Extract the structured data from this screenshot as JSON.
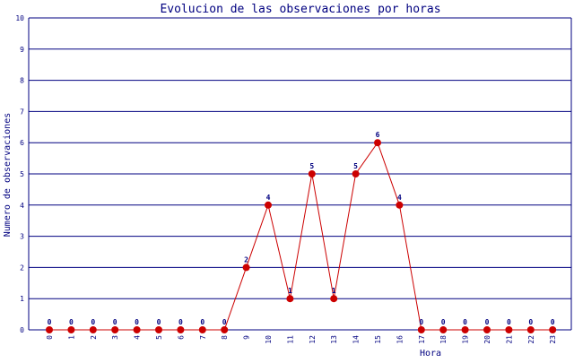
{
  "chart_data": {
    "type": "line",
    "title": "Evolucion de las observaciones por horas",
    "xlabel": "Hora",
    "ylabel": "Numero de observaciones",
    "categories": [
      "0",
      "1",
      "2",
      "3",
      "4",
      "5",
      "6",
      "7",
      "8",
      "9",
      "10",
      "11",
      "12",
      "13",
      "14",
      "15",
      "16",
      "17",
      "18",
      "19",
      "20",
      "21",
      "22",
      "23"
    ],
    "series": [
      {
        "values": [
          0,
          0,
          0,
          0,
          0,
          0,
          0,
          0,
          0,
          2,
          4,
          1,
          5,
          1,
          5,
          6,
          4,
          0,
          0,
          0,
          0,
          0,
          0,
          0
        ]
      }
    ],
    "ylim": [
      0,
      10
    ],
    "yticks": [
      0,
      1,
      2,
      3,
      4,
      5,
      6,
      7,
      8,
      9,
      10
    ],
    "grid": true,
    "legend": "none",
    "data_labels": true,
    "colors": {
      "grid": "#000080",
      "text": "#000080",
      "line": "#cc0000",
      "marker": "#cc0000"
    }
  }
}
